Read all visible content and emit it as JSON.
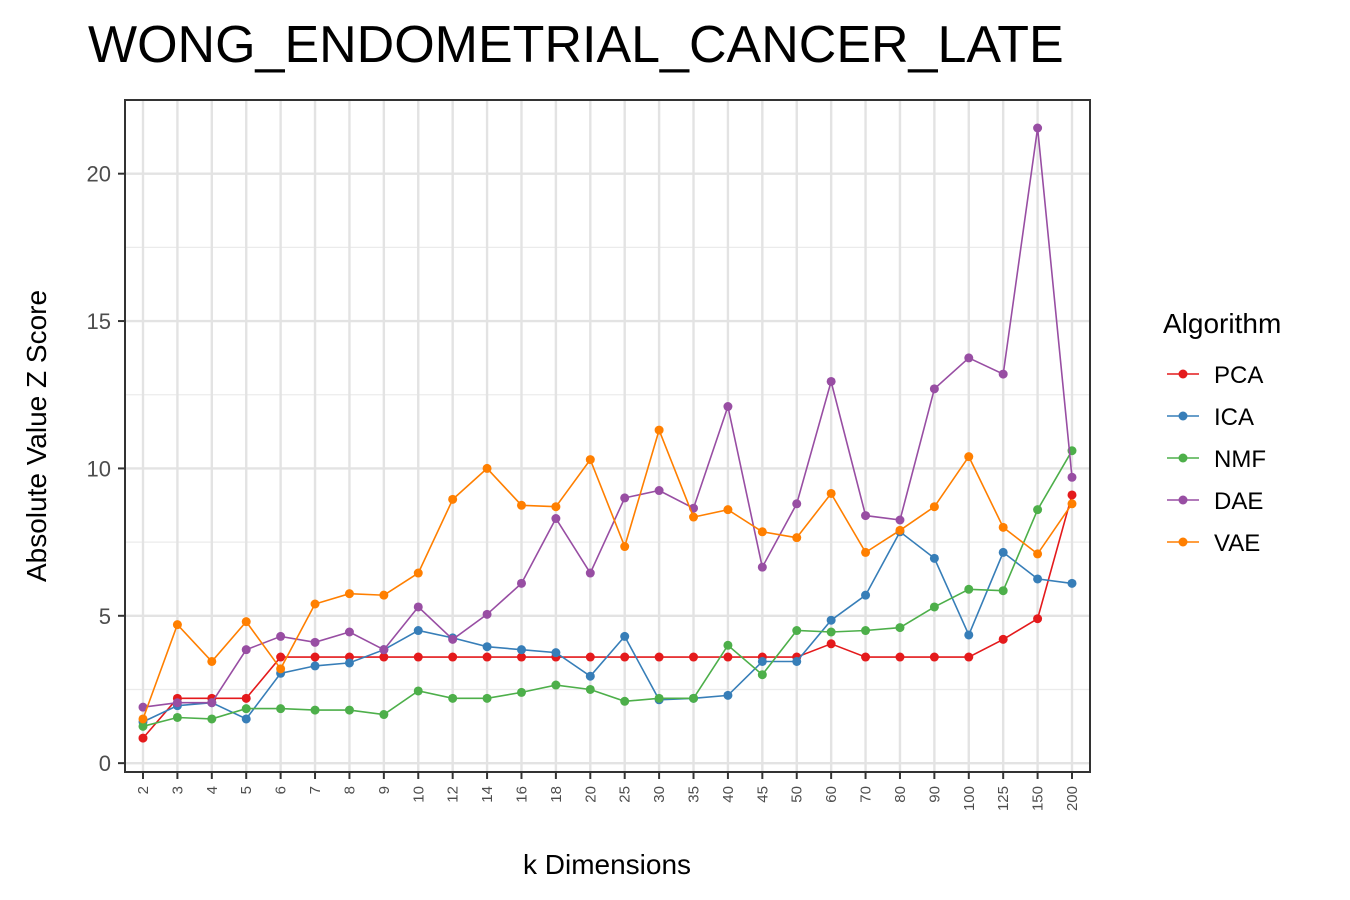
{
  "chart_data": {
    "type": "line",
    "title": "WONG_ENDOMETRIAL_CANCER_LATE",
    "xlabel": "k Dimensions",
    "ylabel": "Absolute Value Z Score",
    "categories": [
      "2",
      "3",
      "4",
      "5",
      "6",
      "7",
      "8",
      "9",
      "10",
      "12",
      "14",
      "16",
      "18",
      "20",
      "25",
      "30",
      "35",
      "40",
      "45",
      "50",
      "60",
      "70",
      "80",
      "90",
      "100",
      "125",
      "150",
      "200"
    ],
    "ylim": [
      -0.3,
      22.5
    ],
    "yticks": [
      0,
      5,
      10,
      15,
      20
    ],
    "grid": true,
    "legend": {
      "title": "Algorithm",
      "position": "right"
    },
    "series": [
      {
        "name": "PCA",
        "color": "#e41a1c",
        "values": [
          0.85,
          2.2,
          2.2,
          2.2,
          3.6,
          3.6,
          3.6,
          3.6,
          3.6,
          3.6,
          3.6,
          3.6,
          3.6,
          3.6,
          3.6,
          3.6,
          3.6,
          3.6,
          3.6,
          3.6,
          4.05,
          3.6,
          3.6,
          3.6,
          3.6,
          4.2,
          4.9,
          9.1
        ]
      },
      {
        "name": "ICA",
        "color": "#377eb8",
        "values": [
          1.4,
          1.95,
          2.05,
          1.5,
          3.05,
          3.3,
          3.4,
          3.85,
          4.5,
          4.25,
          3.95,
          3.85,
          3.75,
          2.95,
          4.3,
          2.15,
          2.2,
          2.3,
          3.45,
          3.45,
          4.85,
          5.7,
          7.85,
          6.95,
          4.35,
          7.15,
          6.25,
          6.1
        ]
      },
      {
        "name": "NMF",
        "color": "#4daf4a",
        "values": [
          1.25,
          1.55,
          1.5,
          1.85,
          1.85,
          1.8,
          1.8,
          1.65,
          2.45,
          2.2,
          2.2,
          2.4,
          2.65,
          2.5,
          2.1,
          2.2,
          2.2,
          4.0,
          3.0,
          4.5,
          4.45,
          4.5,
          4.6,
          5.3,
          5.9,
          5.85,
          8.6,
          10.6
        ]
      },
      {
        "name": "DAE",
        "color": "#984ea3",
        "values": [
          1.9,
          2.05,
          2.05,
          3.85,
          4.3,
          4.1,
          4.45,
          3.85,
          5.3,
          4.2,
          5.05,
          6.1,
          8.3,
          6.45,
          9.0,
          9.25,
          8.65,
          12.1,
          6.65,
          8.8,
          12.95,
          8.4,
          8.25,
          12.7,
          13.75,
          13.2,
          21.55,
          9.7
        ]
      },
      {
        "name": "VAE",
        "color": "#ff7f00",
        "values": [
          1.5,
          4.7,
          3.45,
          4.8,
          3.2,
          5.4,
          5.75,
          5.7,
          6.45,
          8.95,
          10.0,
          8.75,
          8.7,
          10.3,
          7.35,
          11.3,
          8.35,
          8.6,
          7.85,
          7.65,
          9.15,
          7.15,
          7.9,
          8.7,
          10.4,
          8.0,
          7.1,
          8.8
        ]
      }
    ]
  }
}
